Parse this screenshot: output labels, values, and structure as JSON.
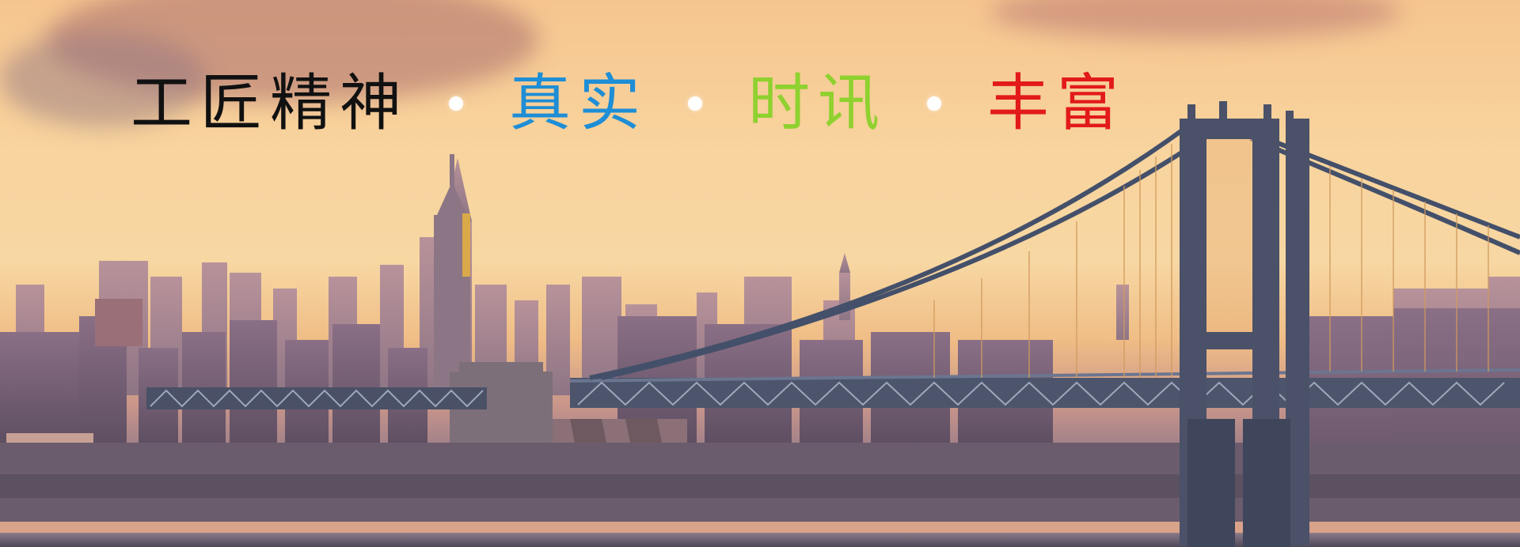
{
  "banner": {
    "slogan": {
      "part1": "工匠精神",
      "part2": "真实",
      "part3": "时讯",
      "part4": "丰富"
    },
    "colors": {
      "part1": "#111111",
      "part2": "#1e8ed6",
      "part3": "#8fd12f",
      "part4": "#e21a1a",
      "separator": "#ffffff"
    },
    "image_subject": "city-skyline-with-suspension-bridge"
  }
}
